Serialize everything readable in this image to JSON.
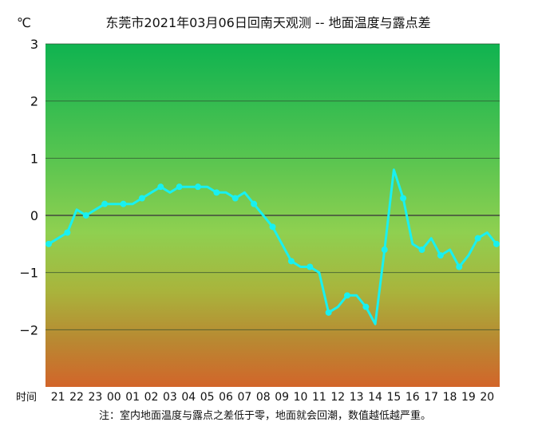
{
  "chart_data": {
    "type": "line",
    "title": "东莞市2021年03月06日回南天观测 -- 地面温度与露点差",
    "ylabel": "℃",
    "xlabel": "时间",
    "note": "注：室内地面温度与露点之差低于零，地面就会回潮，数值越低越严重。",
    "ylim": [
      -3,
      3
    ],
    "yticks": [
      3,
      2,
      1,
      0,
      -1,
      -2
    ],
    "xticks": [
      "21",
      "22",
      "23",
      "00",
      "01",
      "02",
      "03",
      "04",
      "05",
      "06",
      "07",
      "08",
      "09",
      "10",
      "11",
      "12",
      "13",
      "14",
      "15",
      "16",
      "17",
      "18",
      "19",
      "20"
    ],
    "grid": true,
    "line_color": "#19f0f0",
    "series": [
      {
        "values": [
          -0.5,
          -0.4,
          -0.3,
          0.1,
          0.0,
          0.1,
          0.2,
          0.2,
          0.2,
          0.2,
          0.3,
          0.4,
          0.5,
          0.4,
          0.5,
          0.5,
          0.5,
          0.5,
          0.4,
          0.4,
          0.3,
          0.4,
          0.2,
          0.0,
          -0.2,
          -0.5,
          -0.8,
          -0.9,
          -0.9,
          -1.0,
          -1.7,
          -1.6,
          -1.4,
          -1.4,
          -1.6,
          -1.9,
          -0.6,
          0.8,
          0.3,
          -0.5,
          -0.6,
          -0.4,
          -0.7,
          -0.6,
          -0.9,
          -0.7,
          -0.4,
          -0.3,
          -0.5
        ],
        "marker_every": 2,
        "marker_offset": 0
      }
    ]
  }
}
